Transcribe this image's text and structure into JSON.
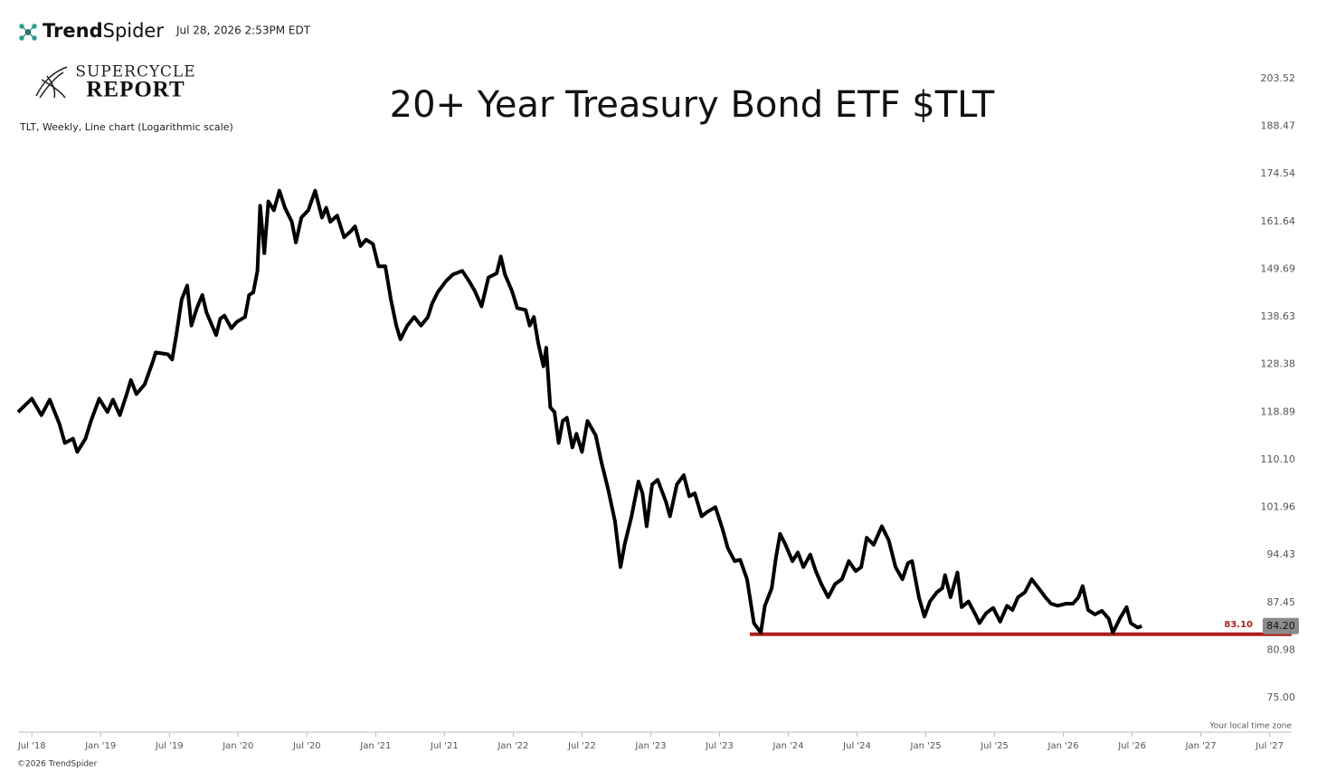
{
  "header": {
    "brand_bold": "Trend",
    "brand_rest": "Spider",
    "timestamp": "Jul 28, 2026 2:53PM EDT",
    "logo_top": "SUPERCYCLE",
    "logo_bottom": "REPORT",
    "footer": "©2026 TrendSpider",
    "timezone_note": "Your local time zone"
  },
  "chart_data": {
    "type": "line",
    "title": "20+ Year Treasury Bond ETF $TLT",
    "subtitle": "TLT, Weekly, Line chart (Logarithmic scale)",
    "log_scale": true,
    "grid": false,
    "color": "#000000",
    "xlim": [
      2018.4,
      2027.66
    ],
    "ylim": [
      71,
      208.5
    ],
    "xticks": [
      {
        "value": 2018.5,
        "label": "Jul '18"
      },
      {
        "value": 2019.0,
        "label": "Jan '19"
      },
      {
        "value": 2019.5,
        "label": "Jul '19"
      },
      {
        "value": 2020.0,
        "label": "Jan '20"
      },
      {
        "value": 2020.5,
        "label": "Jul '20"
      },
      {
        "value": 2021.0,
        "label": "Jan '21"
      },
      {
        "value": 2021.5,
        "label": "Jul '21"
      },
      {
        "value": 2022.0,
        "label": "Jan '22"
      },
      {
        "value": 2022.5,
        "label": "Jul '22"
      },
      {
        "value": 2023.0,
        "label": "Jan '23"
      },
      {
        "value": 2023.5,
        "label": "Jul '23"
      },
      {
        "value": 2024.0,
        "label": "Jan '24"
      },
      {
        "value": 2024.5,
        "label": "Jul '24"
      },
      {
        "value": 2025.0,
        "label": "Jan '25"
      },
      {
        "value": 2025.5,
        "label": "Jul '25"
      },
      {
        "value": 2026.0,
        "label": "Jan '26"
      },
      {
        "value": 2026.5,
        "label": "Jul '26"
      },
      {
        "value": 2027.0,
        "label": "Jan '27"
      },
      {
        "value": 2027.5,
        "label": "Jul '27"
      }
    ],
    "yticks": [
      203.52,
      188.47,
      174.54,
      161.64,
      149.69,
      138.63,
      128.38,
      118.89,
      {
        "value": 110.1,
        "label": "110.10"
      },
      101.96,
      94.43,
      87.45,
      80.98,
      {
        "value": 75,
        "label": "75.00"
      }
    ],
    "x": [
      2018.4,
      2018.5,
      2018.57,
      2018.63,
      2018.7,
      2018.74,
      2018.8,
      2018.83,
      2018.89,
      2018.93,
      2018.99,
      2019.05,
      2019.09,
      2019.14,
      2019.19,
      2019.22,
      2019.26,
      2019.32,
      2019.38,
      2019.4,
      2019.49,
      2019.52,
      2019.55,
      2019.59,
      2019.63,
      2019.66,
      2019.7,
      2019.74,
      2019.77,
      2019.84,
      2019.87,
      2019.9,
      2019.95,
      2019.99,
      2020.05,
      2020.08,
      2020.11,
      2020.14,
      2020.16,
      2020.19,
      2020.22,
      2020.26,
      2020.3,
      2020.34,
      2020.39,
      2020.42,
      2020.46,
      2020.51,
      2020.56,
      2020.61,
      2020.64,
      2020.67,
      2020.72,
      2020.77,
      2020.82,
      2020.85,
      2020.89,
      2020.93,
      2020.98,
      2021.02,
      2021.07,
      2021.11,
      2021.15,
      2021.18,
      2021.23,
      2021.28,
      2021.33,
      2021.38,
      2021.41,
      2021.45,
      2021.51,
      2021.56,
      2021.63,
      2021.68,
      2021.72,
      2021.77,
      2021.82,
      2021.88,
      2021.91,
      2021.94,
      2021.99,
      2022.03,
      2022.09,
      2022.12,
      2022.15,
      2022.18,
      2022.22,
      2022.24,
      2022.27,
      2022.3,
      2022.33,
      2022.36,
      2022.39,
      2022.43,
      2022.46,
      2022.5,
      2022.54,
      2022.6,
      2022.64,
      2022.69,
      2022.74,
      2022.78,
      2022.81,
      2022.86,
      2022.91,
      2022.94,
      2022.97,
      2023.01,
      2023.05,
      2023.11,
      2023.14,
      2023.19,
      2023.24,
      2023.28,
      2023.32,
      2023.37,
      2023.41,
      2023.47,
      2023.52,
      2023.56,
      2023.61,
      2023.65,
      2023.7,
      2023.75,
      2023.8,
      2023.83,
      2023.88,
      2023.91,
      2023.94,
      2023.98,
      2024.03,
      2024.07,
      2024.11,
      2024.16,
      2024.2,
      2024.24,
      2024.29,
      2024.34,
      2024.39,
      2024.44,
      2024.49,
      2024.53,
      2024.57,
      2024.62,
      2024.65,
      2024.68,
      2024.73,
      2024.78,
      2024.83,
      2024.87,
      2024.9,
      2024.95,
      2024.99,
      2025.03,
      2025.08,
      2025.12,
      2025.14,
      2025.18,
      2025.23,
      2025.26,
      2025.31,
      2025.36,
      2025.39,
      2025.44,
      2025.49,
      2025.54,
      2025.59,
      2025.63,
      2025.67,
      2025.72,
      2025.77,
      2025.82,
      2025.87,
      2025.91,
      2025.96,
      2026.02,
      2026.07,
      2026.11,
      2026.14,
      2026.18,
      2026.23,
      2026.28,
      2026.33,
      2026.36,
      2026.41,
      2026.46,
      2026.49,
      2026.54,
      2026.57
    ],
    "values": [
      118.9,
      121.5,
      118.3,
      121.3,
      116.7,
      113.1,
      113.9,
      111.5,
      113.9,
      117.2,
      121.5,
      118.9,
      121.3,
      118.3,
      122.4,
      125.2,
      122.4,
      124.3,
      129,
      130.9,
      130.5,
      129.4,
      134.6,
      142.6,
      145.8,
      136.7,
      140.6,
      143.6,
      139.6,
      134.6,
      138.2,
      138.9,
      136.1,
      137.5,
      138.6,
      143.6,
      144.2,
      149.3,
      165.8,
      153.6,
      167,
      164.6,
      169.9,
      165.3,
      161.6,
      156.3,
      162.7,
      164.6,
      169.9,
      162.7,
      165.3,
      161.6,
      163.2,
      157.6,
      159.2,
      160.4,
      155.4,
      157,
      155.9,
      150.4,
      150.4,
      142.6,
      136.7,
      133.7,
      136.7,
      138.6,
      136.7,
      138.6,
      141.6,
      144.2,
      146.8,
      148.4,
      149.3,
      146.8,
      144.6,
      141,
      147.7,
      148.7,
      152.8,
      148.4,
      144.6,
      140.6,
      140.2,
      136.7,
      138.6,
      133.1,
      128,
      131.9,
      119.8,
      118.9,
      113.1,
      117.2,
      117.8,
      112.3,
      114.8,
      111.5,
      117.2,
      114.5,
      109.8,
      105,
      99.7,
      92.6,
      96,
      100.5,
      106.3,
      104.3,
      98.9,
      105.8,
      106.6,
      102.9,
      100.5,
      105.8,
      107.4,
      103.8,
      104.3,
      100.5,
      101.2,
      102,
      98.6,
      95.5,
      93.5,
      93.7,
      90.8,
      84.6,
      83.3,
      87,
      89.5,
      94,
      97.7,
      96,
      93.5,
      94.8,
      92.6,
      94.5,
      92,
      90.1,
      88.2,
      90.1,
      90.8,
      93.5,
      92,
      92.6,
      97.1,
      96,
      97.4,
      98.9,
      96.7,
      92.6,
      90.8,
      93.2,
      93.5,
      88.2,
      85.5,
      87.6,
      88.9,
      89.5,
      91.4,
      88.2,
      91.8,
      86.8,
      87.6,
      85.8,
      84.6,
      86,
      86.7,
      84.8,
      87,
      86.4,
      88.2,
      88.9,
      90.8,
      89.5,
      88.2,
      87.3,
      87,
      87.3,
      87.3,
      88.2,
      89.8,
      86.4,
      85.8,
      86.3,
      85.2,
      83.3,
      85.2,
      86.8,
      84.6,
      84,
      84.2
    ],
    "reference_line": {
      "value": 83.1,
      "label": "83.10",
      "start": 2023.72,
      "color": "#b01c1c"
    },
    "last_price": {
      "value": 84.2,
      "label": "84.20"
    }
  }
}
